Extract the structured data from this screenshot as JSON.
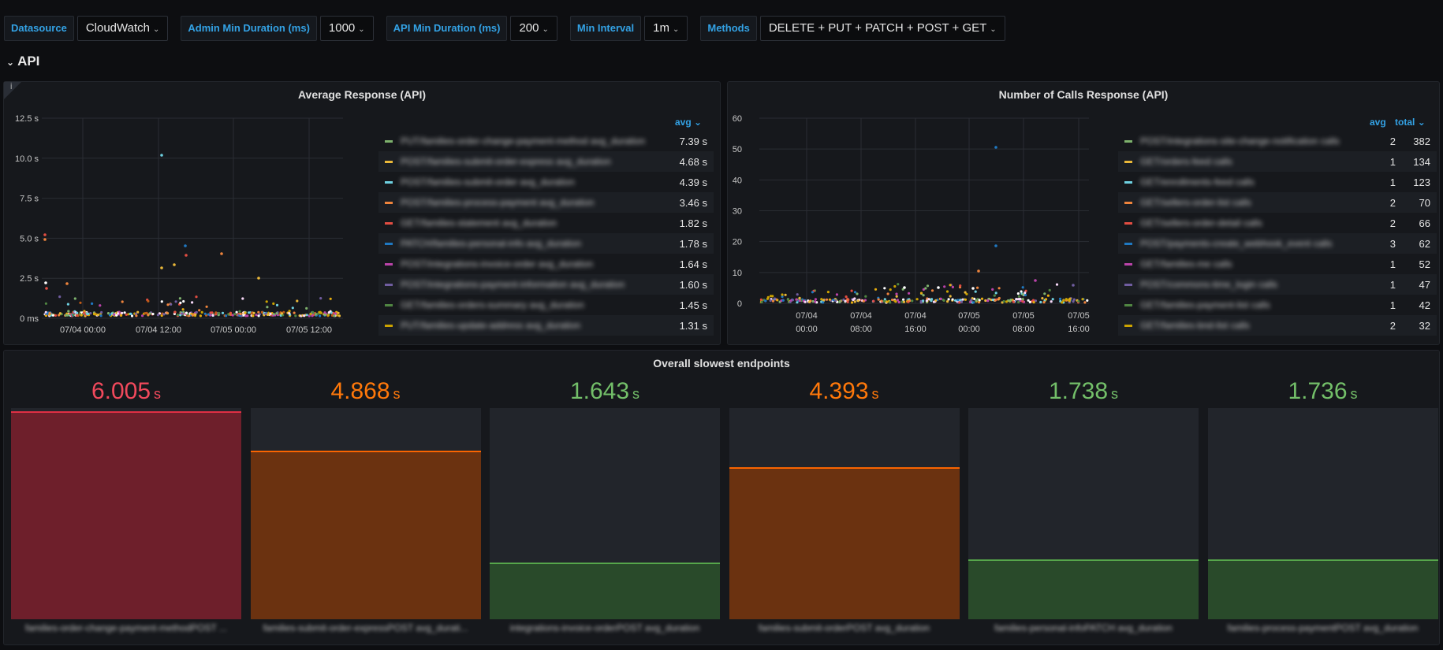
{
  "variables": [
    {
      "label": "Datasource",
      "value": "CloudWatch"
    },
    {
      "label": "Admin Min Duration (ms)",
      "value": "1000"
    },
    {
      "label": "API Min Duration (ms)",
      "value": "200"
    },
    {
      "label": "Min Interval",
      "value": "1m"
    },
    {
      "label": "Methods",
      "value": "DELETE + PUT + PATCH + POST + GET"
    }
  ],
  "row_title": "API",
  "panel_avg": {
    "title": "Average Response (API)",
    "info": "i",
    "legend_header": "avg",
    "legend": [
      {
        "name": "PUT/families-order-change-payment-method avg_duration",
        "value": "7.39 s",
        "color": "#7eb26d"
      },
      {
        "name": "POST/families-submit-order-express avg_duration",
        "value": "4.68 s",
        "color": "#eab839"
      },
      {
        "name": "POST/families-submit-order avg_duration",
        "value": "4.39 s",
        "color": "#6ed0e0"
      },
      {
        "name": "POST/families-process-payment avg_duration",
        "value": "3.46 s",
        "color": "#ef843c"
      },
      {
        "name": "GET/families-statement avg_duration",
        "value": "1.82 s",
        "color": "#e24d42"
      },
      {
        "name": "PATCH/families-personal-info avg_duration",
        "value": "1.78 s",
        "color": "#1f78c1"
      },
      {
        "name": "POST/integrations-invoice-order avg_duration",
        "value": "1.64 s",
        "color": "#ba43a9"
      },
      {
        "name": "POST/integrations-payment-information avg_duration",
        "value": "1.60 s",
        "color": "#705da0"
      },
      {
        "name": "GET/families-orders-summary avg_duration",
        "value": "1.45 s",
        "color": "#508642"
      },
      {
        "name": "PUT/families-update-address avg_duration",
        "value": "1.31 s",
        "color": "#cca300"
      }
    ],
    "y_ticks": [
      "12.5 s",
      "10.0 s",
      "7.5 s",
      "5.0 s",
      "2.5 s",
      "0 ms"
    ],
    "x_ticks": [
      "07/04 00:00",
      "07/04 12:00",
      "07/05 00:00",
      "07/05 12:00"
    ]
  },
  "panel_calls": {
    "title": "Number of Calls Response (API)",
    "legend_header_avg": "avg",
    "legend_header_total": "total",
    "legend": [
      {
        "name": "POST/integrations-site-change-notification calls",
        "avg": "2",
        "total": "382",
        "color": "#7eb26d"
      },
      {
        "name": "GET/orders-feed calls",
        "avg": "1",
        "total": "134",
        "color": "#eab839"
      },
      {
        "name": "GET/enrollments-feed calls",
        "avg": "1",
        "total": "123",
        "color": "#6ed0e0"
      },
      {
        "name": "GET/sellers-order-list calls",
        "avg": "2",
        "total": "70",
        "color": "#ef843c"
      },
      {
        "name": "GET/sellers-order-detail calls",
        "avg": "2",
        "total": "66",
        "color": "#e24d42"
      },
      {
        "name": "POST/payments-create_webhook_event calls",
        "avg": "3",
        "total": "62",
        "color": "#1f78c1"
      },
      {
        "name": "GET/families-me calls",
        "avg": "1",
        "total": "52",
        "color": "#ba43a9"
      },
      {
        "name": "POST/commons-time_login calls",
        "avg": "1",
        "total": "47",
        "color": "#705da0"
      },
      {
        "name": "GET/families-payment-list calls",
        "avg": "1",
        "total": "42",
        "color": "#508642"
      },
      {
        "name": "GET/families-bnd-list calls",
        "avg": "2",
        "total": "32",
        "color": "#cca300"
      }
    ],
    "y_ticks": [
      "60",
      "50",
      "40",
      "30",
      "20",
      "10",
      "0"
    ],
    "x_ticks": [
      [
        "07/04",
        "00:00"
      ],
      [
        "07/04",
        "08:00"
      ],
      [
        "07/04",
        "16:00"
      ],
      [
        "07/05",
        "00:00"
      ],
      [
        "07/05",
        "08:00"
      ],
      [
        "07/05",
        "16:00"
      ]
    ]
  },
  "slowest": {
    "title": "Overall slowest endpoints",
    "unit": "s",
    "items": [
      {
        "value": "6.005",
        "num": 6.005,
        "label": "families-order-change-payment-methodPOST ...",
        "text_color": "#f2495c",
        "fill": "#6e1f2b",
        "line": "#e02f44"
      },
      {
        "value": "4.868",
        "num": 4.868,
        "label": "families-submit-order-expressPOST avg_durati...",
        "text_color": "#ff780a",
        "fill": "#6b3210",
        "line": "#fa6400"
      },
      {
        "value": "1.643",
        "num": 1.643,
        "label": "integrations-invoice-orderPOST avg_duration",
        "text_color": "#73bf69",
        "fill": "#294a2a",
        "line": "#56a64b"
      },
      {
        "value": "4.393",
        "num": 4.393,
        "label": "families-submit-orderPOST avg_duration",
        "text_color": "#ff780a",
        "fill": "#6b3210",
        "line": "#fa6400"
      },
      {
        "value": "1.738",
        "num": 1.738,
        "label": "families-personal-infoPATCH avg_duration",
        "text_color": "#73bf69",
        "fill": "#294a2a",
        "line": "#56a64b"
      },
      {
        "value": "1.736",
        "num": 1.736,
        "label": "families-process-paymentPOST avg_duration",
        "text_color": "#73bf69",
        "fill": "#294a2a",
        "line": "#56a64b"
      }
    ]
  }
}
